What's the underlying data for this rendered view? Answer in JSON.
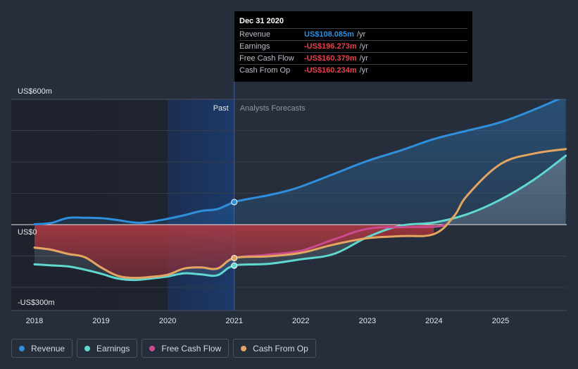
{
  "chart_data": {
    "type": "line",
    "ylim": [
      -300,
      600
    ],
    "yticks": [
      {
        "value": 600,
        "label": "US$600m"
      },
      {
        "value": 0,
        "label": "US$0"
      },
      {
        "value": -300,
        "label": "-US$300m"
      }
    ],
    "xlim": [
      2017.9,
      2025.98
    ],
    "xticks": [
      2018,
      2019,
      2020,
      2021,
      2022,
      2023,
      2024,
      2025
    ],
    "divider_x": 2021.0,
    "highlight_start_x": 2020.0,
    "past_label": "Past",
    "forecast_label": "Analysts Forecasts",
    "series": [
      {
        "name": "Revenue",
        "color": "#2f8fdc",
        "points": [
          [
            2018.0,
            2
          ],
          [
            2018.25,
            8
          ],
          [
            2018.5,
            32
          ],
          [
            2018.75,
            33
          ],
          [
            2019.0,
            31
          ],
          [
            2019.25,
            22
          ],
          [
            2019.5,
            10
          ],
          [
            2019.7,
            12
          ],
          [
            2020.0,
            28
          ],
          [
            2020.25,
            45
          ],
          [
            2020.5,
            65
          ],
          [
            2020.75,
            75
          ],
          [
            2021.0,
            108
          ],
          [
            2021.25,
            125
          ],
          [
            2021.5,
            140
          ],
          [
            2021.75,
            158
          ],
          [
            2022.0,
            182
          ],
          [
            2022.5,
            243
          ],
          [
            2023.0,
            305
          ],
          [
            2023.5,
            355
          ],
          [
            2024.0,
            410
          ],
          [
            2024.5,
            450
          ],
          [
            2025.0,
            490
          ],
          [
            2025.5,
            550
          ],
          [
            2025.98,
            616
          ]
        ]
      },
      {
        "name": "Earnings",
        "color": "#5fd9cf",
        "points": [
          [
            2018.0,
            -190
          ],
          [
            2018.25,
            -195
          ],
          [
            2018.5,
            -200
          ],
          [
            2018.75,
            -215
          ],
          [
            2019.0,
            -235
          ],
          [
            2019.25,
            -258
          ],
          [
            2019.5,
            -265
          ],
          [
            2019.75,
            -258
          ],
          [
            2020.0,
            -248
          ],
          [
            2020.25,
            -233
          ],
          [
            2020.5,
            -238
          ],
          [
            2020.75,
            -242
          ],
          [
            2021.0,
            -196
          ],
          [
            2021.5,
            -188
          ],
          [
            2022.0,
            -166
          ],
          [
            2022.5,
            -140
          ],
          [
            2023.0,
            -60
          ],
          [
            2023.5,
            -5
          ],
          [
            2024.0,
            10
          ],
          [
            2024.5,
            50
          ],
          [
            2025.0,
            120
          ],
          [
            2025.5,
            215
          ],
          [
            2025.98,
            330
          ]
        ]
      },
      {
        "name": "Free Cash Flow",
        "color": "#c94a8e",
        "points": [
          [
            2018.0,
            -110
          ],
          [
            2018.25,
            -120
          ],
          [
            2018.5,
            -140
          ],
          [
            2018.75,
            -155
          ],
          [
            2019.0,
            -205
          ],
          [
            2019.25,
            -245
          ],
          [
            2019.5,
            -255
          ],
          [
            2019.75,
            -250
          ],
          [
            2020.0,
            -240
          ],
          [
            2020.25,
            -210
          ],
          [
            2020.5,
            -205
          ],
          [
            2020.75,
            -210
          ],
          [
            2021.0,
            -160
          ],
          [
            2021.5,
            -144
          ],
          [
            2022.0,
            -125
          ],
          [
            2022.5,
            -70
          ],
          [
            2023.0,
            -20
          ],
          [
            2023.5,
            -12
          ],
          [
            2024.0,
            -10
          ],
          [
            2024.2,
            0
          ]
        ]
      },
      {
        "name": "Cash From Op",
        "color": "#e3a560",
        "points": [
          [
            2018.0,
            -110
          ],
          [
            2018.25,
            -120
          ],
          [
            2018.5,
            -140
          ],
          [
            2018.75,
            -155
          ],
          [
            2019.0,
            -205
          ],
          [
            2019.25,
            -245
          ],
          [
            2019.5,
            -255
          ],
          [
            2019.75,
            -250
          ],
          [
            2020.0,
            -240
          ],
          [
            2020.25,
            -210
          ],
          [
            2020.5,
            -205
          ],
          [
            2020.75,
            -210
          ],
          [
            2021.0,
            -160
          ],
          [
            2021.5,
            -152
          ],
          [
            2022.0,
            -135
          ],
          [
            2022.5,
            -95
          ],
          [
            2023.0,
            -65
          ],
          [
            2023.5,
            -55
          ],
          [
            2024.0,
            -45
          ],
          [
            2024.3,
            40
          ],
          [
            2024.5,
            140
          ],
          [
            2025.0,
            290
          ],
          [
            2025.5,
            340
          ],
          [
            2025.98,
            362
          ]
        ]
      }
    ]
  },
  "tooltip": {
    "date": "Dec 31 2020",
    "rows": [
      {
        "label": "Revenue",
        "value": "US$108.085m",
        "unit": "/yr",
        "color": "#2f8fdc"
      },
      {
        "label": "Earnings",
        "value": "-US$196.273m",
        "unit": "/yr",
        "color": "#e8414a"
      },
      {
        "label": "Free Cash Flow",
        "value": "-US$160.379m",
        "unit": "/yr",
        "color": "#e8414a"
      },
      {
        "label": "Cash From Op",
        "value": "-US$160.234m",
        "unit": "/yr",
        "color": "#e8414a"
      }
    ]
  },
  "legend": [
    {
      "label": "Revenue",
      "color": "#2f8fdc"
    },
    {
      "label": "Earnings",
      "color": "#5fd9cf"
    },
    {
      "label": "Free Cash Flow",
      "color": "#c94a8e"
    },
    {
      "label": "Cash From Op",
      "color": "#e3a560"
    }
  ]
}
